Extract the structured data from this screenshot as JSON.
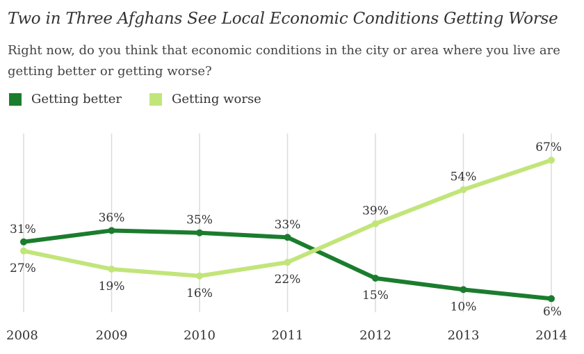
{
  "header": {
    "title": "Two in Three Afghans See Local Economic Conditions Getting Worse",
    "subtitle": "Right now, do you think that economic conditions in the city or area where you live are getting better or getting worse?"
  },
  "colors": {
    "better": "#1b7c2e",
    "worse": "#c2e57a",
    "grid": "#dcdcdc",
    "text": "#333333"
  },
  "chart_data": {
    "type": "line",
    "title": "Two in Three Afghans See Local Economic Conditions Getting Worse",
    "xlabel": "",
    "ylabel": "",
    "categories": [
      "2008",
      "2009",
      "2010",
      "2011",
      "2012",
      "2013",
      "2014"
    ],
    "ylim": [
      0,
      100
    ],
    "grid": "vertical",
    "legend": "top-left",
    "series": [
      {
        "name": "Getting better",
        "values": [
          31,
          36,
          35,
          33,
          15,
          10,
          6
        ],
        "labels": [
          "31%",
          "36%",
          "35%",
          "33%",
          "15%",
          "10%",
          "6%"
        ]
      },
      {
        "name": "Getting worse",
        "values": [
          27,
          19,
          16,
          22,
          39,
          54,
          67
        ],
        "labels": [
          "27%",
          "19%",
          "16%",
          "22%",
          "39%",
          "54%",
          "67%"
        ]
      }
    ]
  }
}
